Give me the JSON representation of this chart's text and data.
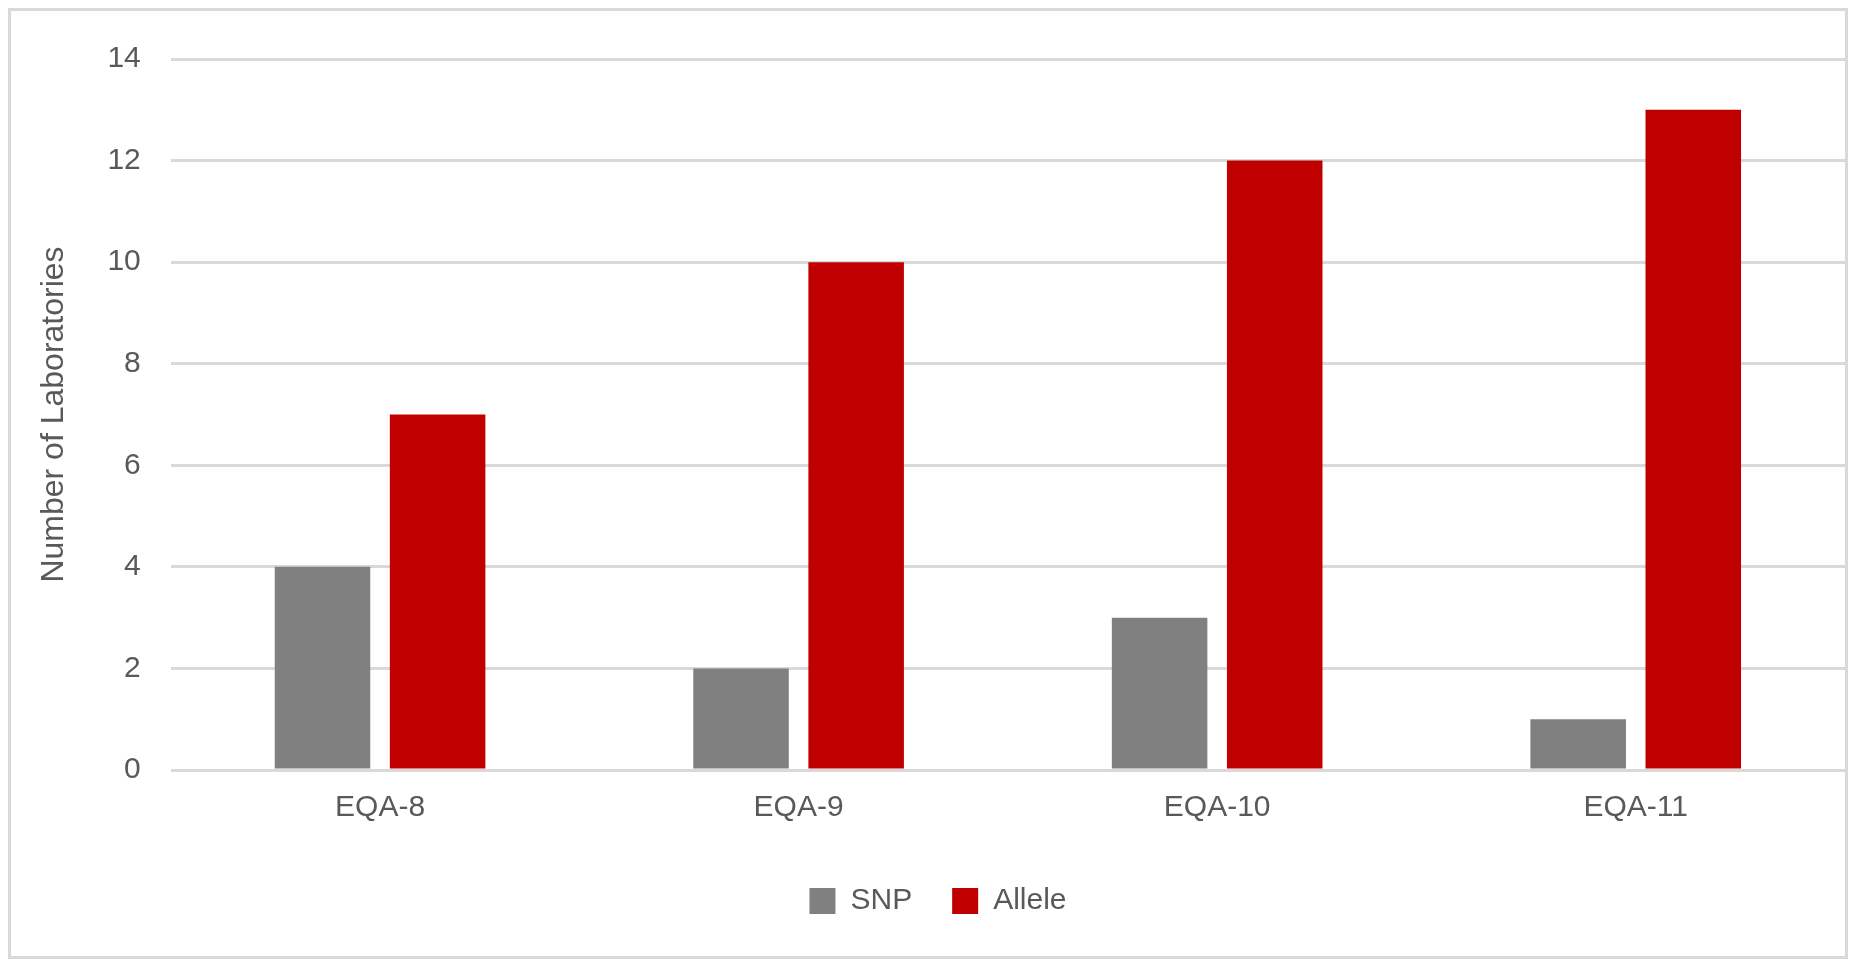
{
  "chart_data": {
    "type": "bar",
    "ylabel": "Number of Laboratories",
    "categories": [
      "EQA-8",
      "EQA-9",
      "EQA-10",
      "EQA-11"
    ],
    "series": [
      {
        "name": "SNP",
        "color": "#808080",
        "values": [
          4,
          2,
          3,
          1
        ]
      },
      {
        "name": "Allele",
        "color": "#c00000",
        "values": [
          7,
          10,
          12,
          13
        ]
      }
    ],
    "ylim": [
      0,
      14
    ],
    "yticks": [
      0,
      2,
      4,
      6,
      8,
      10,
      12,
      14
    ],
    "grid": "y",
    "legend": "bottom"
  }
}
